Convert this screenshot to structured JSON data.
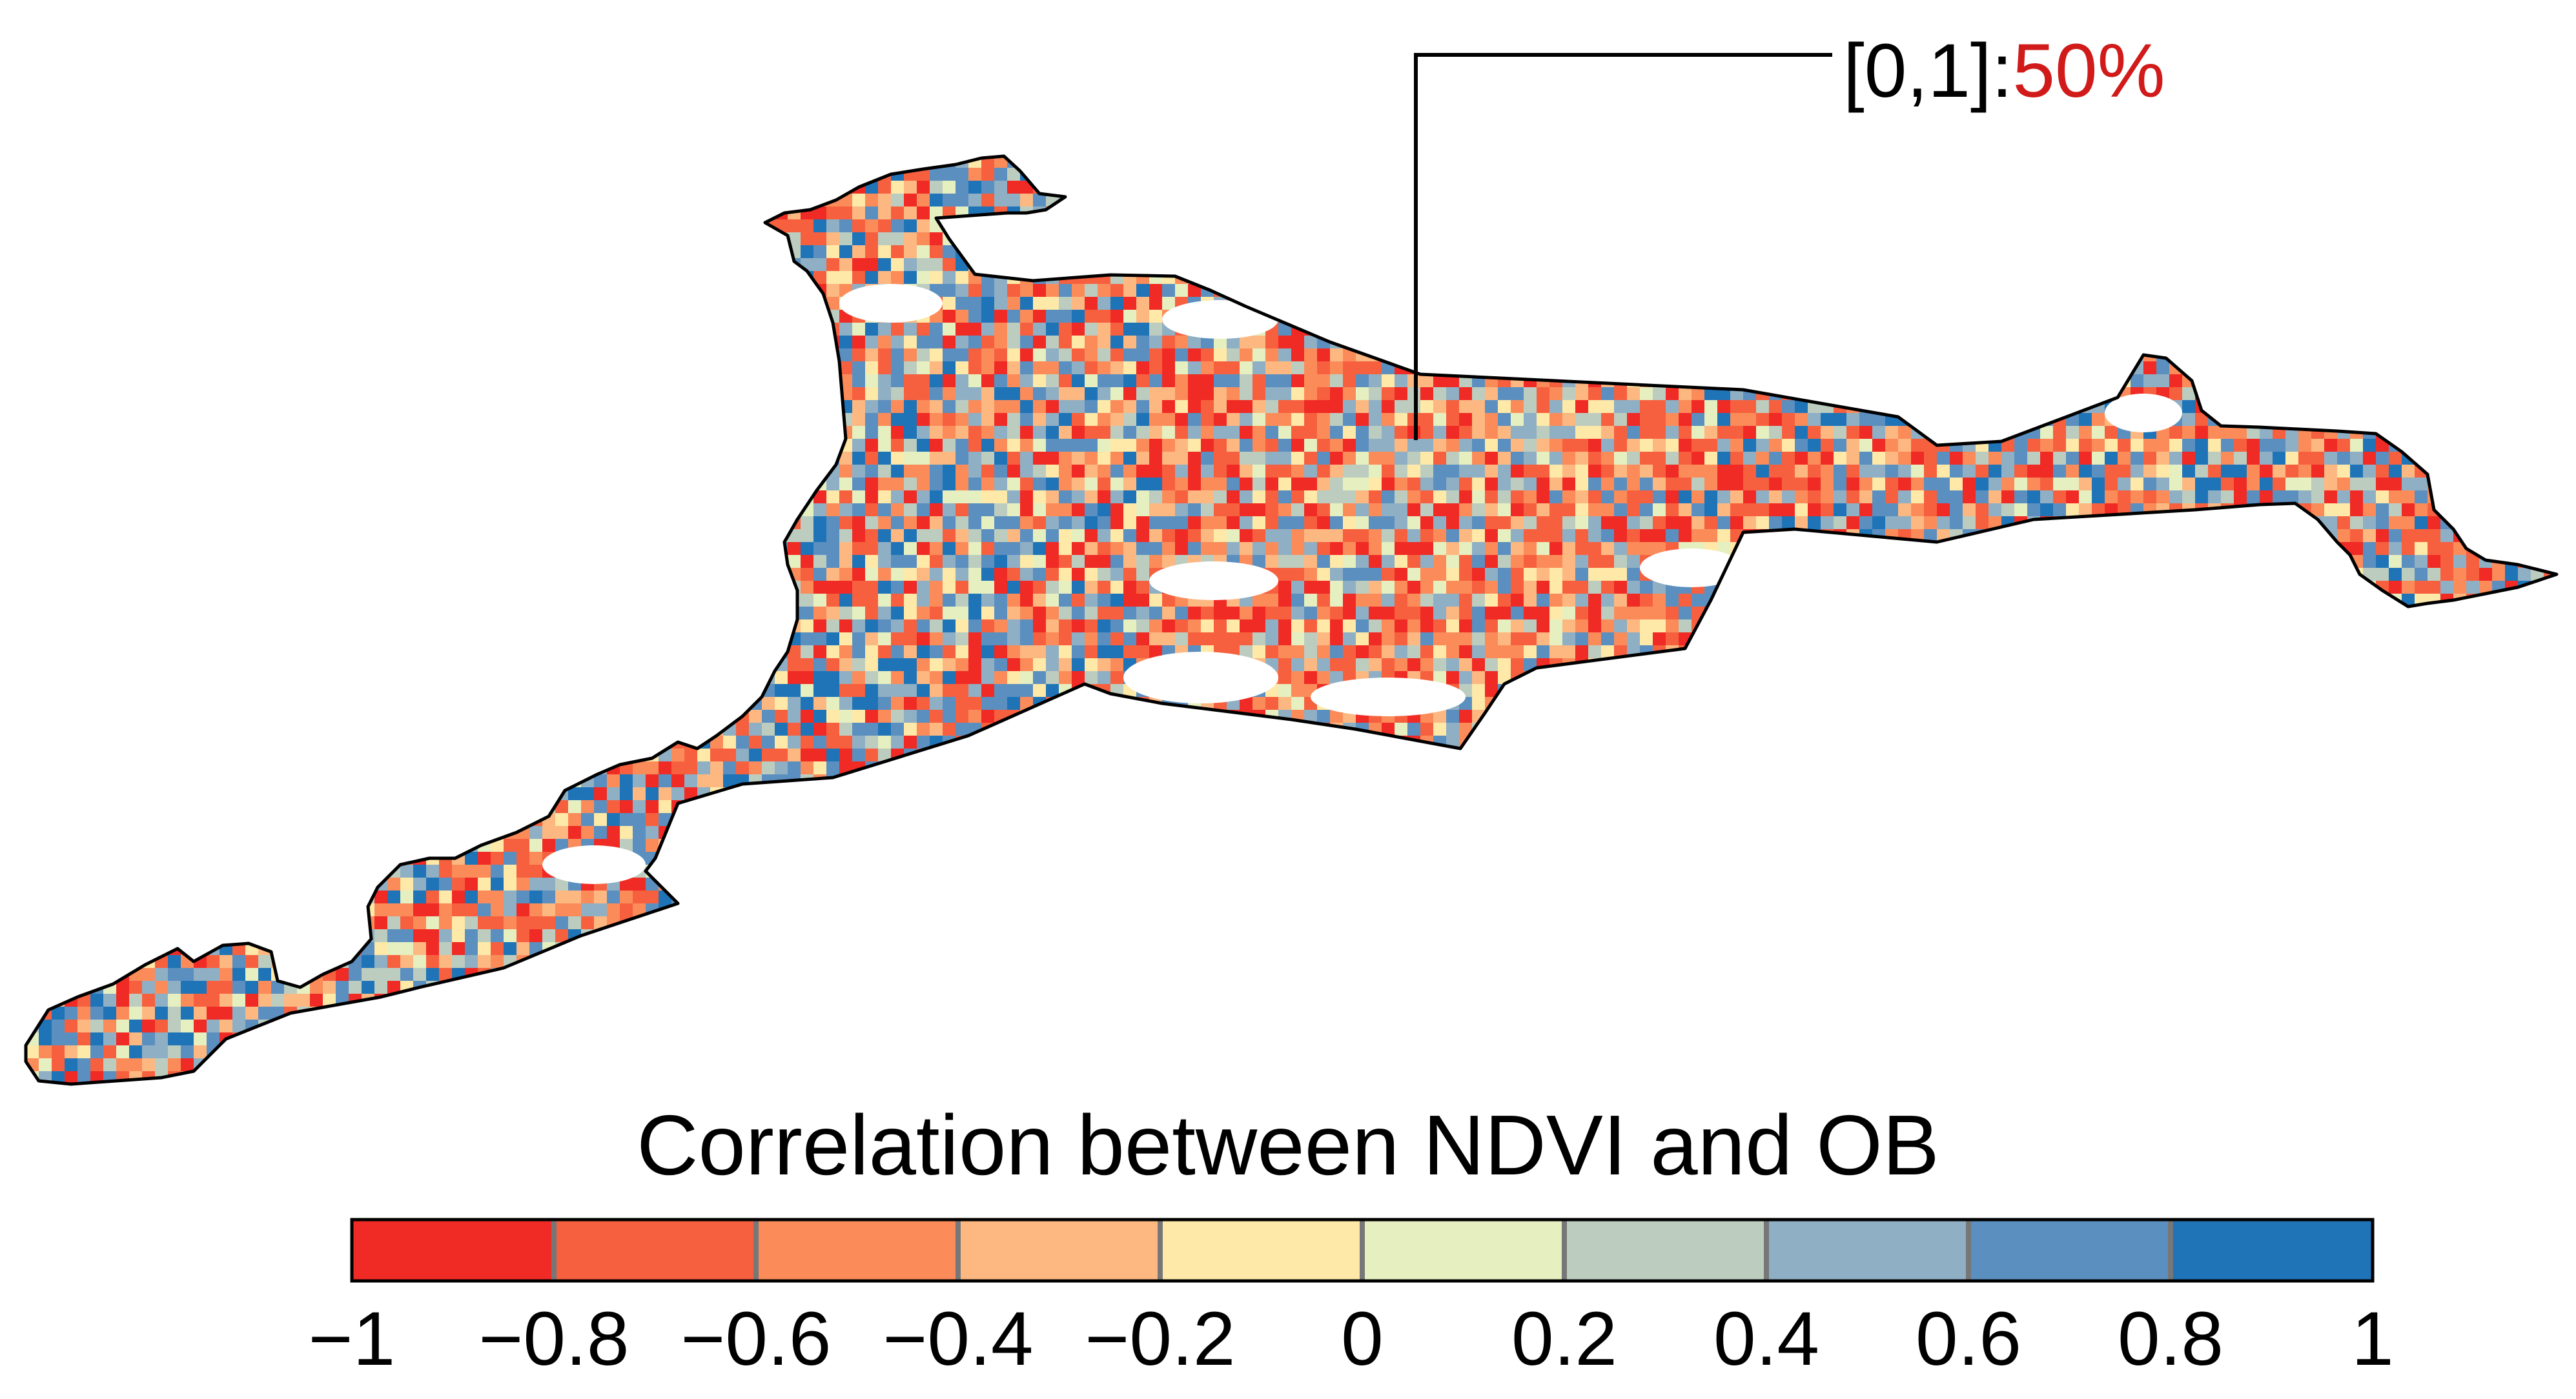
{
  "annotation": {
    "range_label": "[0,1]:",
    "percent": "50%",
    "percent_color": "#d11a1a"
  },
  "colorbar": {
    "title": "Correlation between NDVI and OB",
    "colors": [
      "#f02a24",
      "#f7603f",
      "#fb8c5a",
      "#fdb882",
      "#fee9a8",
      "#e6efc0",
      "#bccdc0",
      "#8fafc4",
      "#5b8fc0",
      "#1f74b8"
    ],
    "tick_labels": [
      "−1",
      "−0.8",
      "−0.6",
      "−0.4",
      "−0.2",
      "0",
      "0.2",
      "0.4",
      "0.6",
      "0.8",
      "1"
    ],
    "range": [
      -1,
      1
    ]
  }
}
